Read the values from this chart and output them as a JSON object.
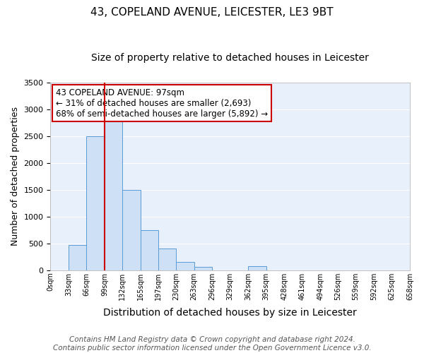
{
  "title1": "43, COPELAND AVENUE, LEICESTER, LE3 9BT",
  "title2": "Size of property relative to detached houses in Leicester",
  "xlabel": "Distribution of detached houses by size in Leicester",
  "ylabel": "Number of detached properties",
  "bin_edges": [
    0,
    33,
    66,
    99,
    132,
    165,
    197,
    230,
    263,
    296,
    329,
    362,
    395,
    428,
    461,
    494,
    526,
    559,
    592,
    625,
    658
  ],
  "bar_heights": [
    0,
    470,
    2500,
    2800,
    1500,
    750,
    400,
    150,
    60,
    0,
    0,
    70,
    0,
    0,
    0,
    0,
    0,
    0,
    0,
    0
  ],
  "bar_color": "#cde0f5",
  "bar_edge_color": "#5b9bd5",
  "vline_x": 99,
  "vline_color": "#cc0000",
  "ylim": [
    0,
    3500
  ],
  "yticks": [
    0,
    500,
    1000,
    1500,
    2000,
    2500,
    3000,
    3500
  ],
  "annotation_text": "43 COPELAND AVENUE: 97sqm\n← 31% of detached houses are smaller (2,693)\n68% of semi-detached houses are larger (5,892) →",
  "annotation_box_color": "white",
  "annotation_box_edge_color": "#cc0000",
  "footer_text": "Contains HM Land Registry data © Crown copyright and database right 2024.\nContains public sector information licensed under the Open Government Licence v3.0.",
  "title1_fontsize": 11,
  "title2_fontsize": 10,
  "xlabel_fontsize": 10,
  "ylabel_fontsize": 9,
  "tick_fontsize": 8,
  "annotation_fontsize": 8.5,
  "footer_fontsize": 7.5,
  "bg_color": "#e8f0fb",
  "grid_color": "white"
}
